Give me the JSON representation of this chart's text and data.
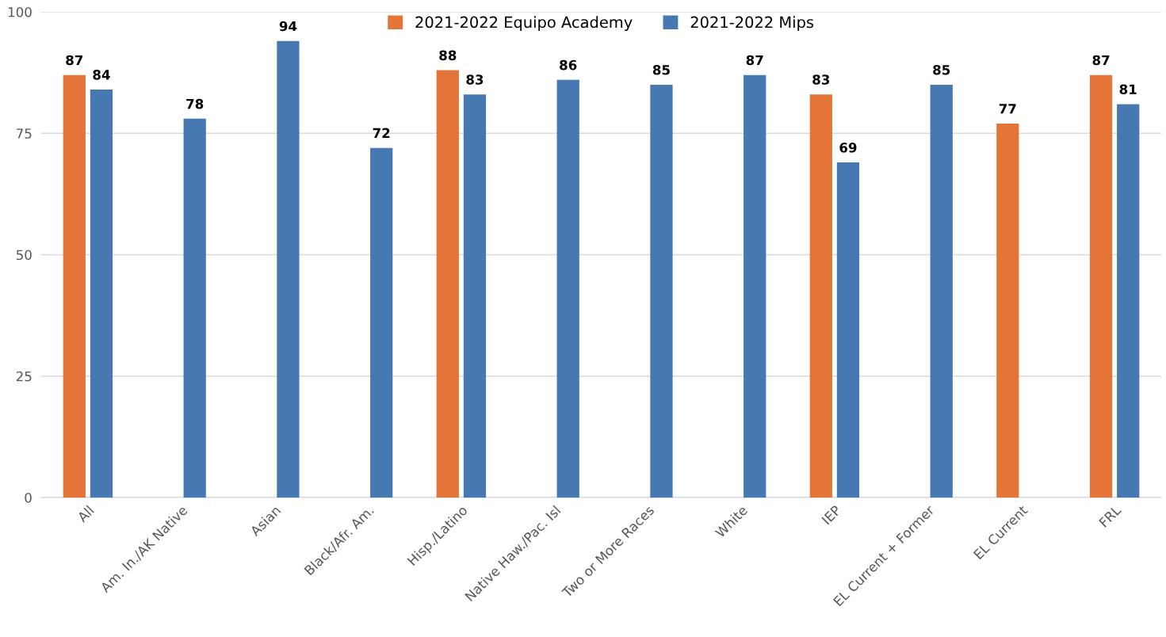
{
  "chart_data": {
    "type": "bar",
    "categories": [
      "All",
      "Am. In./AK Native",
      "Asian",
      "Black/Afr. Am.",
      "Hisp./Latino",
      "Native Haw./Pac. Isl",
      "Two or More Races",
      "White",
      "IEP",
      "EL Current + Former",
      "EL Current",
      "FRL"
    ],
    "series": [
      {
        "name": "2021-2022 Equipo Academy",
        "color": "#e57439",
        "values": [
          87,
          null,
          null,
          null,
          88,
          null,
          null,
          null,
          83,
          null,
          77,
          87
        ]
      },
      {
        "name": "2021-2022 Mips",
        "color": "#4678b2",
        "values": [
          84,
          78,
          94,
          72,
          83,
          86,
          85,
          87,
          69,
          85,
          null,
          81
        ]
      }
    ],
    "ylim": [
      0,
      100
    ],
    "yticks": [
      0,
      25,
      50,
      75,
      100
    ],
    "grid": "y",
    "legend": "top",
    "data_labels": true
  }
}
